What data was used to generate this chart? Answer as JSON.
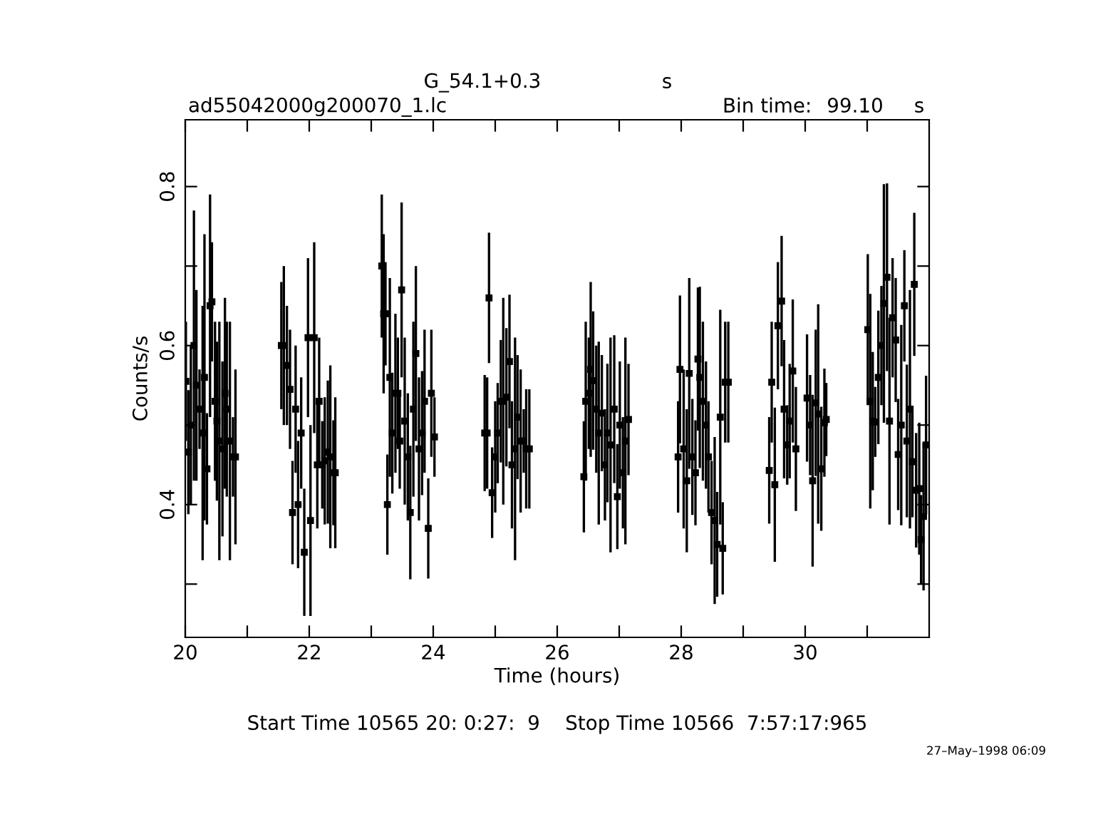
{
  "chart_data": {
    "type": "scatter",
    "title": "G_54.1+0.3",
    "subtitle": "ad55042000g200070_1.lc",
    "xlabel": "Time (hours)",
    "ylabel": "Counts/s",
    "annotations": [
      "s",
      "Bin time:",
      "99.10",
      "s",
      "Start Time 10565 20: 0:27:  9    Stop Time 10566  7:57:17:965",
      "27–May–1998 06:09"
    ],
    "xlim": [
      20,
      32
    ],
    "ylim": [
      0.233,
      0.884
    ],
    "xticks": [
      20,
      {
        "value": 21,
        "label": null
      },
      22,
      {
        "value": 23,
        "label": null
      },
      24,
      {
        "value": 25,
        "label": null
      },
      26,
      {
        "value": 27,
        "label": null
      },
      28,
      {
        "value": 29,
        "label": null
      },
      30,
      {
        "value": 31,
        "label": null
      }
    ],
    "yticks": [
      {
        "value": 0.3,
        "label": null
      },
      0.4,
      {
        "value": 0.5,
        "label": null
      },
      0.6,
      {
        "value": 0.7,
        "label": null
      },
      0.8
    ],
    "grid": false,
    "marker": "square",
    "color": "#000000",
    "x": [
      20.01,
      20.05,
      20.09,
      20.14,
      20.18,
      20.23,
      20.28,
      20.31,
      20.35,
      20.4,
      20.43,
      20.48,
      20.51,
      20.55,
      20.6,
      20.64,
      20.67,
      20.72,
      20.77,
      20.81,
      21.55,
      21.59,
      21.64,
      21.69,
      21.73,
      21.78,
      21.82,
      21.87,
      21.92,
      21.98,
      22.02,
      22.08,
      22.13,
      22.16,
      22.21,
      22.25,
      22.3,
      22.34,
      22.39,
      22.42,
      23.17,
      23.2,
      23.23,
      23.26,
      23.3,
      23.34,
      23.39,
      23.43,
      23.46,
      23.49,
      23.54,
      23.59,
      23.63,
      23.68,
      23.72,
      23.77,
      23.82,
      23.86,
      23.92,
      23.97,
      24.02,
      24.83,
      24.87,
      24.9,
      24.95,
      25.0,
      25.04,
      25.09,
      25.13,
      25.18,
      25.23,
      25.27,
      25.32,
      25.36,
      25.41,
      25.46,
      25.5,
      25.55,
      26.43,
      26.46,
      26.51,
      26.54,
      26.58,
      26.63,
      26.67,
      26.72,
      26.77,
      26.81,
      26.86,
      26.92,
      26.97,
      27.01,
      27.06,
      27.1,
      27.15,
      27.95,
      27.98,
      28.04,
      28.09,
      28.13,
      28.18,
      28.23,
      28.27,
      28.3,
      28.35,
      28.4,
      28.44,
      28.49,
      28.54,
      28.58,
      28.63,
      28.67,
      28.71,
      28.76,
      29.42,
      29.46,
      29.51,
      29.56,
      29.62,
      29.66,
      29.71,
      29.75,
      29.8,
      29.85,
      30.03,
      30.08,
      30.12,
      30.17,
      30.21,
      30.26,
      30.31,
      30.34,
      31.01,
      31.05,
      31.09,
      31.13,
      31.18,
      31.23,
      31.27,
      31.32,
      31.36,
      31.41,
      31.46,
      31.5,
      31.55,
      31.6,
      31.64,
      31.69,
      31.73,
      31.76,
      31.79,
      31.84,
      31.87,
      31.91,
      31.95
    ],
    "values": [
      0.555,
      0.466,
      0.5,
      0.6,
      0.55,
      0.52,
      0.49,
      0.56,
      0.445,
      0.65,
      0.655,
      0.53,
      0.505,
      0.48,
      0.47,
      0.54,
      0.52,
      0.48,
      0.46,
      0.46,
      0.6,
      0.6,
      0.575,
      0.545,
      0.39,
      0.52,
      0.4,
      0.49,
      0.34,
      0.61,
      0.38,
      0.61,
      0.45,
      0.53,
      0.45,
      0.455,
      0.466,
      0.46,
      0.44,
      0.44,
      0.7,
      0.64,
      0.64,
      0.4,
      0.56,
      0.49,
      0.54,
      0.54,
      0.48,
      0.67,
      0.505,
      0.46,
      0.39,
      0.52,
      0.59,
      0.47,
      0.49,
      0.53,
      0.37,
      0.54,
      0.485,
      0.49,
      0.49,
      0.66,
      0.415,
      0.46,
      0.49,
      0.53,
      0.53,
      0.535,
      0.58,
      0.45,
      0.47,
      0.51,
      0.48,
      0.48,
      0.47,
      0.47,
      0.435,
      0.53,
      0.54,
      0.57,
      0.556,
      0.52,
      0.49,
      0.515,
      0.45,
      0.49,
      0.475,
      0.52,
      0.41,
      0.5,
      0.44,
      0.48,
      0.507,
      0.46,
      0.57,
      0.47,
      0.43,
      0.565,
      0.46,
      0.44,
      0.583,
      0.56,
      0.53,
      0.5,
      0.46,
      0.39,
      0.38,
      0.35,
      0.51,
      0.345,
      0.554,
      0.554,
      0.443,
      0.554,
      0.425,
      0.625,
      0.656,
      0.52,
      0.475,
      0.505,
      0.568,
      0.47,
      0.534,
      0.5,
      0.43,
      0.528,
      0.514,
      0.445,
      0.503,
      0.507,
      0.62,
      0.53,
      0.505,
      0.504,
      0.56,
      0.6,
      0.653,
      0.686,
      0.505,
      0.635,
      0.607,
      0.463,
      0.5,
      0.65,
      0.48,
      0.52,
      0.454,
      0.677,
      0.418,
      0.42,
      0.356,
      0.385,
      0.475
    ],
    "errors": [
      0.075,
      0.078,
      0.1,
      0.17,
      0.12,
      0.05,
      0.16,
      0.18,
      0.07,
      0.14,
      0.075,
      0.1,
      0.1,
      0.15,
      0.11,
      0.12,
      0.11,
      0.15,
      0.05,
      0.11,
      0.08,
      0.1,
      0.075,
      0.075,
      0.065,
      0.08,
      0.08,
      0.07,
      0.08,
      0.1,
      0.12,
      0.12,
      0.08,
      0.08,
      0.055,
      0.08,
      0.09,
      0.115,
      0.066,
      0.095,
      0.09,
      0.1,
      0.065,
      0.063,
      0.125,
      0.076,
      0.1,
      0.07,
      0.06,
      0.11,
      0.105,
      0.08,
      0.084,
      0.11,
      0.11,
      0.09,
      0.078,
      0.09,
      0.063,
      0.08,
      0.05,
      0.073,
      0.07,
      0.082,
      0.057,
      0.07,
      0.063,
      0.077,
      0.13,
      0.087,
      0.084,
      0.08,
      0.14,
      0.078,
      0.09,
      0.04,
      0.075,
      0.075,
      0.07,
      0.1,
      0.07,
      0.11,
      0.087,
      0.08,
      0.115,
      0.073,
      0.07,
      0.087,
      0.135,
      0.093,
      0.066,
      0.08,
      0.07,
      0.13,
      0.07,
      0.07,
      0.093,
      0.1,
      0.09,
      0.12,
      0.073,
      0.066,
      0.09,
      0.114,
      0.1,
      0.08,
      0.07,
      0.065,
      0.105,
      0.066,
      0.135,
      0.058,
      0.076,
      0.076,
      0.067,
      0.076,
      0.097,
      0.08,
      0.082,
      0.087,
      0.05,
      0.072,
      0.09,
      0.078,
      0.08,
      0.063,
      0.108,
      0.092,
      0.138,
      0.078,
      0.068,
      0.046,
      0.095,
      0.135,
      0.087,
      0.044,
      0.084,
      0.075,
      0.15,
      0.118,
      0.13,
      0.075,
      0.078,
      0.07,
      0.126,
      0.07,
      0.096,
      0.15,
      0.07,
      0.09,
      0.072,
      0.083,
      0.056,
      0.093,
      0.087
    ]
  }
}
